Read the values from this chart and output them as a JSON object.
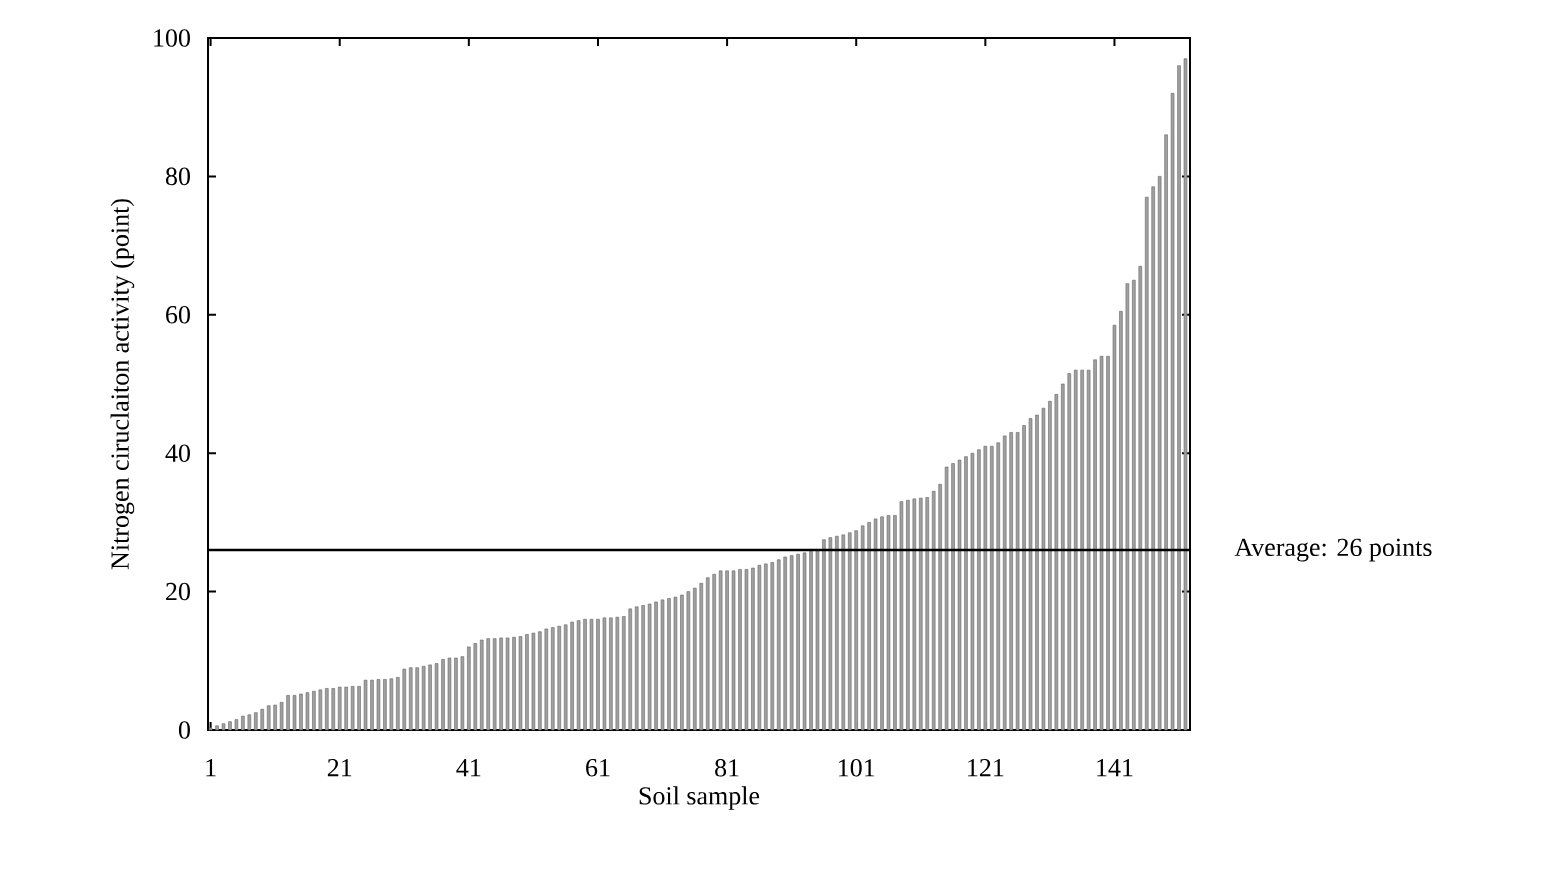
{
  "chart_data": {
    "type": "bar",
    "xlabel": "Soil sample",
    "ylabel": "Nitrogen ciruclaiton activity (point)",
    "x": [
      1,
      2,
      3,
      4,
      5,
      6,
      7,
      8,
      9,
      10,
      11,
      12,
      13,
      14,
      15,
      16,
      17,
      18,
      19,
      20,
      21,
      22,
      23,
      24,
      25,
      26,
      27,
      28,
      29,
      30,
      31,
      32,
      33,
      34,
      35,
      36,
      37,
      38,
      39,
      40,
      41,
      42,
      43,
      44,
      45,
      46,
      47,
      48,
      49,
      50,
      51,
      52,
      53,
      54,
      55,
      56,
      57,
      58,
      59,
      60,
      61,
      62,
      63,
      64,
      65,
      66,
      67,
      68,
      69,
      70,
      71,
      72,
      73,
      74,
      75,
      76,
      77,
      78,
      79,
      80,
      81,
      82,
      83,
      84,
      85,
      86,
      87,
      88,
      89,
      90,
      91,
      92,
      93,
      94,
      95,
      96,
      97,
      98,
      99,
      100,
      101,
      102,
      103,
      104,
      105,
      106,
      107,
      108,
      109,
      110,
      111,
      112,
      113,
      114,
      115,
      116,
      117,
      118,
      119,
      120,
      121,
      122,
      123,
      124,
      125,
      126,
      127,
      128,
      129,
      130,
      131,
      132,
      133,
      134,
      135,
      136,
      137,
      138,
      139,
      140,
      141,
      142,
      143,
      144,
      145,
      146,
      147,
      148,
      149,
      150,
      151,
      152
    ],
    "values": [
      0.3,
      0.6,
      0.9,
      1.2,
      1.5,
      2.0,
      2.2,
      2.5,
      3.0,
      3.5,
      3.6,
      4.0,
      5.0,
      5.0,
      5.2,
      5.4,
      5.6,
      5.8,
      6.0,
      6.0,
      6.2,
      6.2,
      6.3,
      6.3,
      7.2,
      7.2,
      7.3,
      7.3,
      7.4,
      7.6,
      8.8,
      9.0,
      9.0,
      9.2,
      9.4,
      9.6,
      10.2,
      10.4,
      10.4,
      10.6,
      12.0,
      12.5,
      13.0,
      13.2,
      13.2,
      13.3,
      13.3,
      13.4,
      13.5,
      13.8,
      14.0,
      14.2,
      14.6,
      14.8,
      15.0,
      15.2,
      15.6,
      15.8,
      16.0,
      16.0,
      16.0,
      16.2,
      16.2,
      16.3,
      16.4,
      17.5,
      17.8,
      18.0,
      18.2,
      18.5,
      18.8,
      19.0,
      19.2,
      19.5,
      20.0,
      20.5,
      21.2,
      22.0,
      22.5,
      23.0,
      23.0,
      23.0,
      23.2,
      23.2,
      23.4,
      23.8,
      24.0,
      24.2,
      24.6,
      25.0,
      25.2,
      25.4,
      25.6,
      25.8,
      26.0,
      27.5,
      27.8,
      28.0,
      28.2,
      28.5,
      28.8,
      29.5,
      30.0,
      30.5,
      30.8,
      31.0,
      31.0,
      33.0,
      33.2,
      33.4,
      33.5,
      33.6,
      34.5,
      35.5,
      38.0,
      38.5,
      39.0,
      39.5,
      40.0,
      40.5,
      41.0,
      41.0,
      41.5,
      42.5,
      43.0,
      43.0,
      44.0,
      45.0,
      45.5,
      46.5,
      47.5,
      48.5,
      50.0,
      51.5,
      52.0,
      52.0,
      52.0,
      53.5,
      54.0,
      54.0,
      58.5,
      60.5,
      64.5,
      65.0,
      67.0,
      77.0,
      78.5,
      80.0,
      86.0,
      92.0,
      96.0,
      97.0
    ],
    "color": "#a0a0a0",
    "xlim": [
      0.6,
      152.7
    ],
    "xticks": [
      1,
      21,
      41,
      61,
      81,
      101,
      121,
      141
    ],
    "ylim": [
      0,
      100
    ],
    "yticks": [
      0,
      20,
      40,
      60,
      80,
      100
    ],
    "ref_lines": [
      {
        "axis": "y",
        "value": 26,
        "label": "Average: 26 points",
        "color": "#000000"
      }
    ]
  }
}
